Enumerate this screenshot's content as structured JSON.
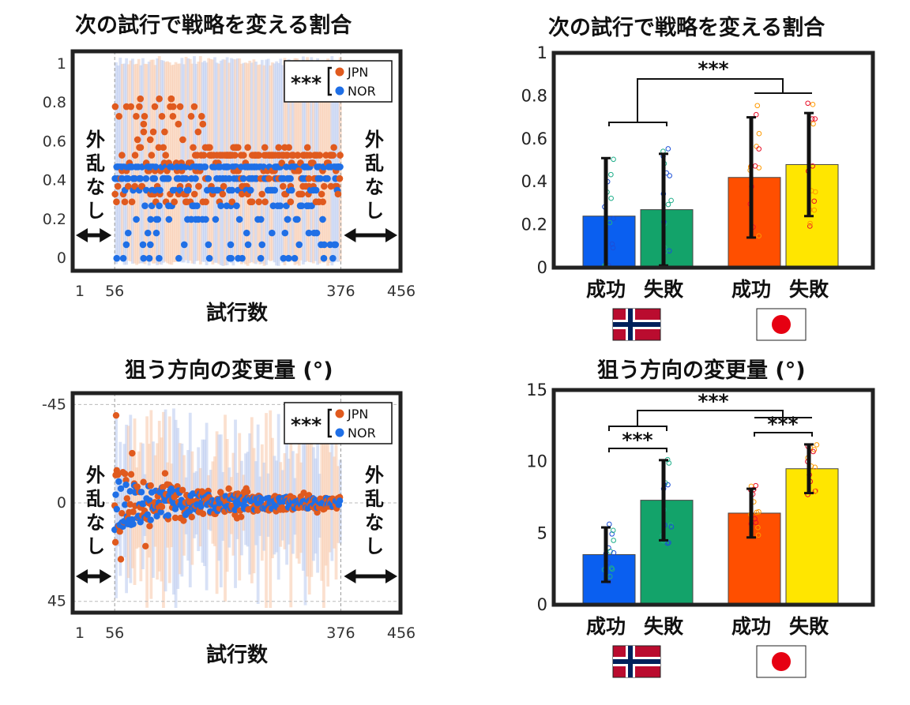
{
  "colors": {
    "jpn": "#e05a1e",
    "nor": "#1f6fe6",
    "bar_nor_success": "#0a5ff0",
    "bar_nor_fail": "#13a36a",
    "bar_jpn_success": "#ff4f00",
    "bar_jpn_fail": "#ffe600",
    "frame": "#222222",
    "grid": "#bbbbbb"
  },
  "panels": {
    "tl": {
      "title": "次の試行で戦略を変える割合"
    },
    "tr": {
      "title": "次の試行で戦略を変える割合"
    },
    "bl": {
      "title": "狙う方向の変更量 (°)"
    },
    "br": {
      "title": "狙う方向の変更量 (°)"
    }
  },
  "labels": {
    "trials": "試行数",
    "no_perturb": [
      "外",
      "乱",
      "な",
      "し"
    ],
    "sig": "***",
    "legend_jpn": "JPN",
    "legend_nor": "NOR",
    "success": "成功",
    "fail": "失敗",
    "trial_ticks": [
      "1",
      "56",
      "376",
      "456"
    ]
  },
  "chart_data": [
    {
      "id": "tl",
      "type": "scatter",
      "title": "次の試行で戦略を変える割合",
      "xlabel": "試行数",
      "xlim": [
        1,
        456
      ],
      "ylim": [
        -0.04,
        1.04
      ],
      "xticks": [
        1,
        56,
        376,
        456
      ],
      "yticks": [
        0,
        0.2,
        0.4,
        0.6,
        0.8,
        1
      ],
      "ytick_labels": [
        "0",
        "0.2",
        "0.4",
        "0.6",
        "0.8",
        "1"
      ],
      "perturb_range": [
        56,
        376
      ],
      "legend": {
        "placement": "top-right",
        "entries": [
          "JPN",
          "NOR"
        ],
        "annotation": "***"
      },
      "series": [
        {
          "name": "JPN",
          "color": "#e05a1e",
          "levels": [
            0.82,
            0.78,
            0.73,
            0.69,
            0.65,
            0.61,
            0.57,
            0.53,
            0.49,
            0.45,
            0.41,
            0.37,
            0.33,
            0.29
          ]
        },
        {
          "name": "NOR",
          "color": "#1f6fe6",
          "levels": [
            0.47,
            0.41,
            0.35,
            0.27,
            0.2,
            0.13,
            0.07,
            0.0
          ]
        }
      ]
    },
    {
      "id": "tr",
      "type": "bar",
      "title": "次の試行で戦略を変える割合",
      "categories": [
        "成功",
        "失敗",
        "成功",
        "失敗"
      ],
      "groups": [
        "NOR",
        "JPN"
      ],
      "values": [
        0.24,
        0.27,
        0.42,
        0.48
      ],
      "errors": [
        0.27,
        0.26,
        0.28,
        0.24
      ],
      "ylim": [
        0,
        1
      ],
      "yticks": [
        0,
        0.2,
        0.4,
        0.6,
        0.8,
        1
      ],
      "ytick_labels": [
        "0",
        "0.2",
        "0.4",
        "0.6",
        "0.8",
        "1"
      ],
      "colors": [
        "#0a5ff0",
        "#13a36a",
        "#ff4f00",
        "#ffe600"
      ],
      "significance": [
        {
          "between": [
            "NOR",
            "JPN"
          ],
          "label": "***"
        }
      ]
    },
    {
      "id": "bl",
      "type": "scatter",
      "title": "狙う方向の変更量 (°)",
      "xlabel": "試行数",
      "xlim": [
        1,
        456
      ],
      "ylim": [
        -48,
        48
      ],
      "y_inverted": true,
      "xticks": [
        1,
        56,
        376,
        456
      ],
      "yticks": [
        -45,
        0,
        45
      ],
      "ytick_labels": [
        "-45",
        "0",
        "45"
      ],
      "perturb_range": [
        56,
        376
      ],
      "legend": {
        "placement": "top-right",
        "entries": [
          "JPN",
          "NOR"
        ],
        "annotation": "***"
      },
      "series": [
        {
          "name": "JPN",
          "color": "#e05a1e"
        },
        {
          "name": "NOR",
          "color": "#1f6fe6"
        }
      ]
    },
    {
      "id": "br",
      "type": "bar",
      "title": "狙う方向の変更量 (°)",
      "categories": [
        "成功",
        "失敗",
        "成功",
        "失敗"
      ],
      "groups": [
        "NOR",
        "JPN"
      ],
      "values": [
        3.5,
        7.3,
        6.4,
        9.5
      ],
      "errors": [
        1.9,
        2.8,
        1.7,
        1.7
      ],
      "ylim": [
        0,
        15
      ],
      "yticks": [
        0,
        5,
        10,
        15
      ],
      "ytick_labels": [
        "0",
        "5",
        "10",
        "15"
      ],
      "colors": [
        "#0a5ff0",
        "#13a36a",
        "#ff4f00",
        "#ffe600"
      ],
      "significance": [
        {
          "between": [
            "NOR",
            "JPN"
          ],
          "label": "***"
        },
        {
          "between": [
            "NOR 成功",
            "NOR 失敗"
          ],
          "label": "***"
        },
        {
          "between": [
            "JPN 成功",
            "JPN 失敗"
          ],
          "label": "***"
        }
      ]
    }
  ]
}
